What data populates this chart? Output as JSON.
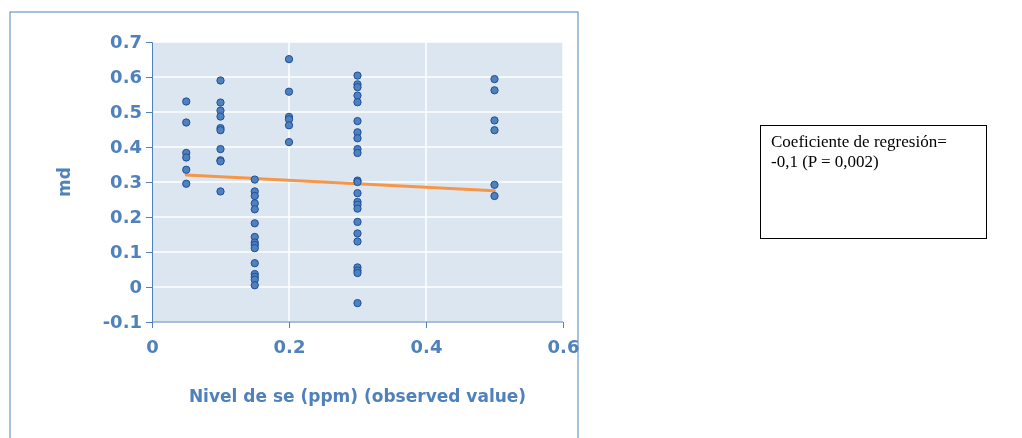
{
  "chart_data": {
    "type": "scatter",
    "xlabel": "Nivel de se (ppm) (observed value)",
    "ylabel": "md",
    "xlim": [
      0,
      0.6
    ],
    "xticks": [
      0,
      0.2,
      0.4,
      0.6
    ],
    "ylim": [
      -0.1,
      0.7
    ],
    "yticks": [
      -0.1,
      0,
      0.1,
      0.2,
      0.3,
      0.4,
      0.5,
      0.6,
      0.7
    ],
    "grid": true,
    "annotations": [
      "Coeficiente de regresión= -0,1 (P = 0,002)"
    ],
    "series": [
      {
        "marker": "circle",
        "color": "#4f81bd",
        "x": [
          0.05,
          0.05,
          0.05,
          0.05,
          0.05,
          0.05,
          0.1,
          0.1,
          0.1,
          0.1,
          0.1,
          0.1,
          0.1,
          0.1,
          0.1,
          0.1,
          0.15,
          0.15,
          0.15,
          0.15,
          0.15,
          0.15,
          0.15,
          0.15,
          0.15,
          0.15,
          0.15,
          0.15,
          0.15,
          0.15,
          0.15,
          0.2,
          0.2,
          0.2,
          0.2,
          0.2,
          0.2,
          0.3,
          0.3,
          0.3,
          0.3,
          0.3,
          0.3,
          0.3,
          0.3,
          0.3,
          0.3,
          0.3,
          0.3,
          0.3,
          0.3,
          0.3,
          0.3,
          0.3,
          0.3,
          0.3,
          0.3,
          0.3,
          0.3,
          0.3,
          0.5,
          0.5,
          0.5,
          0.5,
          0.5,
          0.5
        ],
        "values": [
          0.53,
          0.47,
          0.383,
          0.37,
          0.335,
          0.295,
          0.59,
          0.527,
          0.504,
          0.487,
          0.454,
          0.448,
          0.394,
          0.362,
          0.359,
          0.273,
          0.307,
          0.273,
          0.26,
          0.239,
          0.222,
          0.182,
          0.143,
          0.127,
          0.12,
          0.111,
          0.068,
          0.037,
          0.029,
          0.021,
          0.005,
          0.651,
          0.558,
          0.486,
          0.479,
          0.462,
          0.414,
          0.604,
          0.579,
          0.571,
          0.547,
          0.528,
          0.474,
          0.442,
          0.425,
          0.394,
          0.383,
          0.304,
          0.3,
          0.268,
          0.243,
          0.235,
          0.224,
          0.186,
          0.153,
          0.13,
          0.056,
          0.047,
          0.04,
          -0.046,
          0.594,
          0.562,
          0.476,
          0.448,
          0.292,
          0.26
        ]
      },
      {
        "type": "line",
        "color": "#f79646",
        "x": [
          0.05,
          0.5
        ],
        "values": [
          0.32,
          0.275
        ]
      }
    ]
  }
}
